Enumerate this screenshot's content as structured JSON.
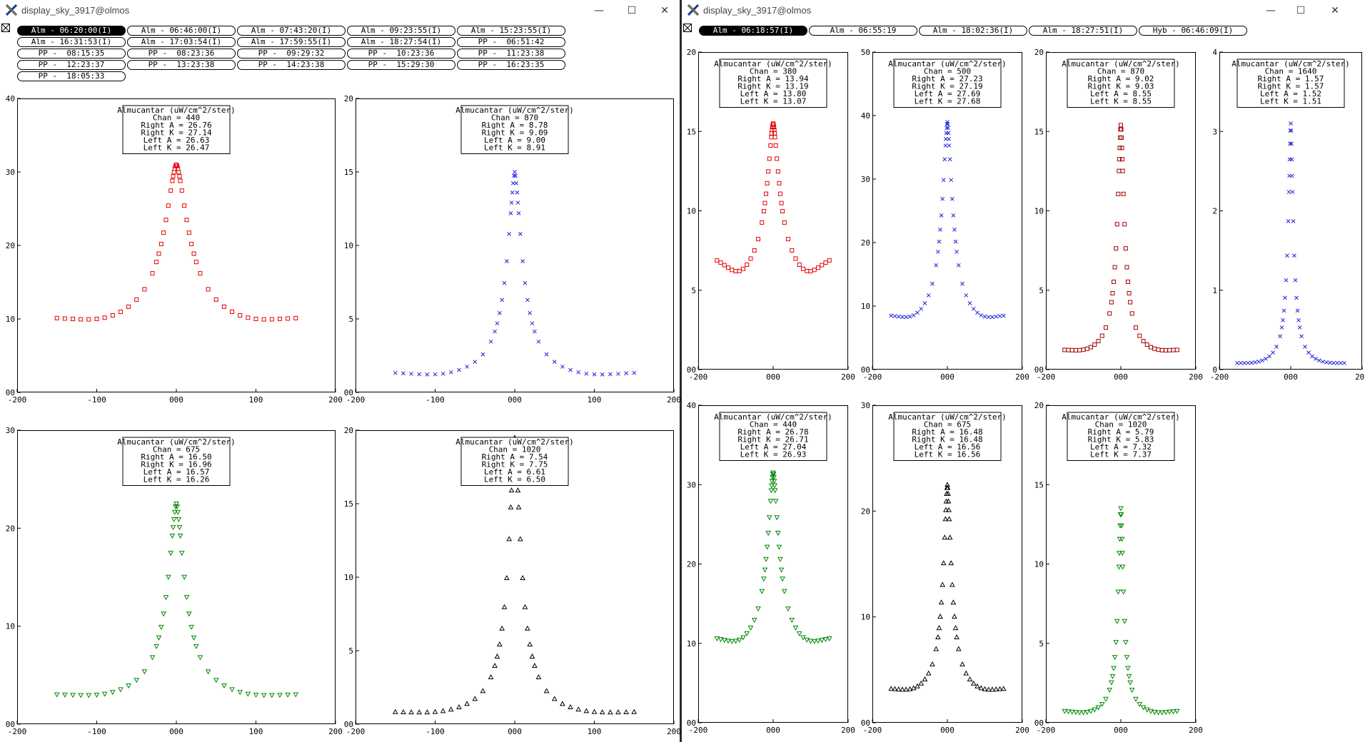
{
  "windows": [
    {
      "title": "display_sky_3917@olmos",
      "buttons": [
        {
          "label": "Alm - 06:20:00(I)",
          "active": true
        },
        {
          "label": "Alm - 06:46:00(I)"
        },
        {
          "label": "Alm - 07:43:20(I)"
        },
        {
          "label": "Alm - 09:23:55(I)"
        },
        {
          "label": "Alm - 15:23:55(I)"
        },
        {
          "label": "Alm - 16:31:53(I)"
        },
        {
          "label": "Alm - 17:03:54(I)"
        },
        {
          "label": "Alm - 17:59:55(I)"
        },
        {
          "label": "Alm - 18:27:54(I)"
        },
        {
          "label": "PP -  06:51:42"
        },
        {
          "label": "PP -  08:15:35"
        },
        {
          "label": "PP -  08:23:36"
        },
        {
          "label": "PP -  09:29:32"
        },
        {
          "label": "PP -  10:23:36"
        },
        {
          "label": "PP -  11:23:38"
        },
        {
          "label": "PP -  12:23:37"
        },
        {
          "label": "PP -  13:23:38"
        },
        {
          "label": "PP -  14:23:38"
        },
        {
          "label": "PP -  15:29:30"
        },
        {
          "label": "PP -  16:23:35"
        },
        {
          "label": "PP -  18:05:33"
        }
      ]
    },
    {
      "title": "display_sky_3917@olmos",
      "buttons": [
        {
          "label": "Alm - 06:18:57(I)",
          "active": true
        },
        {
          "label": "Alm - 06:55:19"
        },
        {
          "label": "Alm - 18:02:36(I)"
        },
        {
          "label": "Alm - 18:27:51(I)"
        },
        {
          "label": "Hyb - 06:46:09(I)"
        }
      ]
    }
  ],
  "window_controls": {
    "minimize": "—",
    "maximize": "☐",
    "close": "✕"
  },
  "chart_data": [
    {
      "type": "scatter",
      "window": 0,
      "title": "Almucantar (uW/cm^2/ster)",
      "lines": [
        "Chan = 440",
        "Right A = 26.76",
        "Right K = 27.14",
        "Left A = 26.63",
        "Left K = 26.47"
      ],
      "xlim": [
        -200,
        200
      ],
      "ylim": [
        0,
        40
      ],
      "xticks": [
        "-200",
        "-100",
        "000",
        "100",
        "200"
      ],
      "yticks": [
        "00",
        "10",
        "20",
        "30",
        "40"
      ],
      "marker": "square",
      "color": "#e60000",
      "peak": 31,
      "base": 8.5,
      "halfwidth": 20,
      "side": 0.8
    },
    {
      "type": "scatter",
      "window": 0,
      "title": "Almucantar (uW/cm^2/ster)",
      "lines": [
        "Chan = 870",
        "Right A = 8.78",
        "Right K = 9.09",
        "Left A = 9.00",
        "Left K = 8.91"
      ],
      "xlim": [
        -200,
        200
      ],
      "ylim": [
        0,
        20
      ],
      "xticks": [
        "-200",
        "-100",
        "000",
        "100",
        "200"
      ],
      "yticks": [
        "00",
        "5",
        "10",
        "15",
        "20"
      ],
      "marker": "x",
      "color": "#2222dd",
      "peak": 15,
      "base": 0.8,
      "halfwidth": 12,
      "side": 0.3
    },
    {
      "type": "scatter",
      "window": 0,
      "title": "Almucantar (uW/cm^2/ster)",
      "lines": [
        "Chan = 675",
        "Right A = 16.50",
        "Right K = 16.96",
        "Left A = 16.57",
        "Left K = 16.26"
      ],
      "xlim": [
        -200,
        200
      ],
      "ylim": [
        0,
        30
      ],
      "xticks": [
        "-200",
        "-100",
        "000",
        "100",
        "200"
      ],
      "yticks": [
        "00",
        "10",
        "20",
        "30"
      ],
      "marker": "tri-down",
      "color": "#008800",
      "peak": 22.5,
      "base": 2.2,
      "halfwidth": 14,
      "side": 0.4
    },
    {
      "type": "scatter",
      "window": 0,
      "title": "Almucantar (uW/cm^2/ster)",
      "lines": [
        "Chan = 1020",
        "Right A = 7.54",
        "Right K = 7.75",
        "Left A = 6.61",
        "Left K = 6.50"
      ],
      "xlim": [
        -200,
        200
      ],
      "ylim": [
        0,
        20
      ],
      "xticks": [
        "-200",
        "-100",
        "000",
        "100",
        "200"
      ],
      "yticks": [
        "00",
        "5",
        "10",
        "15",
        "20"
      ],
      "marker": "tri-up",
      "color": "#000000",
      "peak": 19.5,
      "base": 0.4,
      "halfwidth": 10,
      "side": 0.2
    },
    {
      "type": "scatter",
      "window": 1,
      "title": "Almucantar (uW/cm^2/ster)",
      "lines": [
        "Chan = 380",
        "Right A = 13.94",
        "Right K = 13.19",
        "Left A = 13.80",
        "Left K = 13.07"
      ],
      "xlim": [
        -200,
        200
      ],
      "ylim": [
        0,
        20
      ],
      "xticks": [
        "-200",
        "000",
        "200"
      ],
      "yticks": [
        "00",
        "5",
        "10",
        "15",
        "20"
      ],
      "marker": "square",
      "color": "#e60000",
      "peak": 15.5,
      "base": 5.5,
      "halfwidth": 22,
      "side": 1.0
    },
    {
      "type": "scatter",
      "window": 1,
      "title": "Almucantar (uW/cm^2/ster)",
      "lines": [
        "Chan = 500",
        "Right A = 27.23",
        "Right K = 27.19",
        "Left A = 27.69",
        "Left K = 27.68"
      ],
      "xlim": [
        -200,
        200
      ],
      "ylim": [
        0,
        50
      ],
      "xticks": [
        "-200",
        "000",
        "200"
      ],
      "yticks": [
        "00",
        "10",
        "20",
        "30",
        "40",
        "50"
      ],
      "marker": "x",
      "color": "#2222dd",
      "peak": 39,
      "base": 6.5,
      "halfwidth": 18,
      "side": 1.0
    },
    {
      "type": "scatter",
      "window": 1,
      "title": "Almucantar (uW/cm^2/ster)",
      "lines": [
        "Chan = 870",
        "Right A = 9.02",
        "Right K = 9.03",
        "Left A = 8.55",
        "Left K = 8.55"
      ],
      "xlim": [
        -200,
        200
      ],
      "ylim": [
        0,
        20
      ],
      "xticks": [
        "-200",
        "000",
        "200"
      ],
      "yticks": [
        "00",
        "5",
        "10",
        "15",
        "20"
      ],
      "marker": "square",
      "color": "#a00000",
      "peak": 15.4,
      "base": 0.8,
      "halfwidth": 12,
      "side": 0.2
    },
    {
      "type": "scatter",
      "window": 1,
      "title": "Almucantar (uW/cm^2/ster)",
      "lines": [
        "Chan = 1640",
        "Right A = 1.57",
        "Right K = 1.57",
        "Left A = 1.52",
        "Left K = 1.51"
      ],
      "xlim": [
        -200,
        200
      ],
      "ylim": [
        0,
        4
      ],
      "xticks": [
        "-200",
        "000",
        "200"
      ],
      "yticks": [
        "0",
        "1",
        "2",
        "3",
        "4"
      ],
      "marker": "x",
      "color": "#2222dd",
      "peak": 3.1,
      "base": 0.03,
      "halfwidth": 9,
      "side": 0.02
    },
    {
      "type": "scatter",
      "window": 1,
      "title": "Almucantar (uW/cm^2/ster)",
      "lines": [
        "Chan = 440",
        "Right A = 26.78",
        "Right K = 26.71",
        "Left A = 27.04",
        "Left K = 26.93"
      ],
      "xlim": [
        -200,
        200
      ],
      "ylim": [
        0,
        40
      ],
      "xticks": [
        "-200",
        "000",
        "200"
      ],
      "yticks": [
        "00",
        "10",
        "20",
        "30",
        "40"
      ],
      "marker": "tri-down",
      "color": "#008800",
      "peak": 31.5,
      "base": 8.8,
      "halfwidth": 20,
      "side": 1.0
    },
    {
      "type": "scatter",
      "window": 1,
      "title": "Almucantar (uW/cm^2/ster)",
      "lines": [
        "Chan = 675",
        "Right A = 16.48",
        "Right K = 16.48",
        "Left A = 16.56",
        "Left K = 16.56"
      ],
      "xlim": [
        -200,
        200
      ],
      "ylim": [
        0,
        30
      ],
      "xticks": [
        "-200",
        "000",
        "200"
      ],
      "yticks": [
        "00",
        "10",
        "20",
        "30"
      ],
      "marker": "tri-up",
      "color": "#000000",
      "peak": 22.5,
      "base": 2.4,
      "halfwidth": 14,
      "side": 0.4
    },
    {
      "type": "scatter",
      "window": 1,
      "title": "Almucantar (uW/cm^2/ster)",
      "lines": [
        "Chan = 1020",
        "Right A = 5.79",
        "Right K = 5.83",
        "Left A = 7.32",
        "Left K = 7.37"
      ],
      "xlim": [
        -200,
        200
      ],
      "ylim": [
        0,
        20
      ],
      "xticks": [
        "-200",
        "000",
        "200"
      ],
      "yticks": [
        "00",
        "5",
        "10",
        "15",
        "20"
      ],
      "marker": "tri-down",
      "color": "#008800",
      "peak": 13.5,
      "base": 0.4,
      "halfwidth": 9,
      "side": 0.2
    }
  ]
}
